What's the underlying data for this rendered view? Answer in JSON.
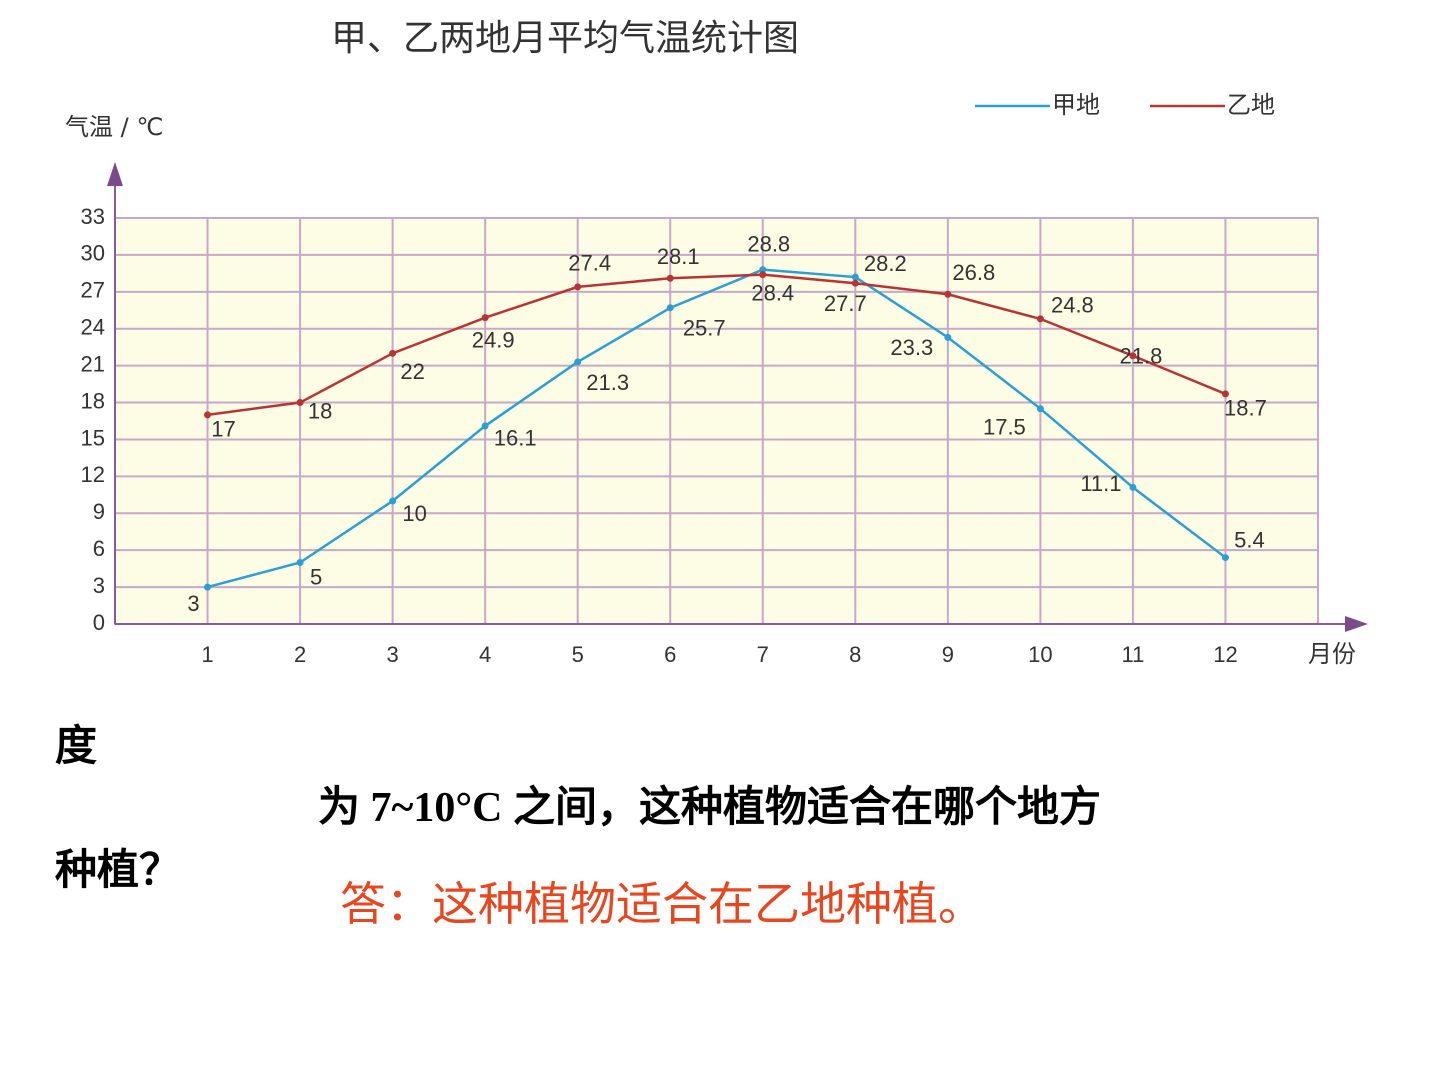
{
  "chart_data": {
    "type": "line",
    "title": "甲、乙两地月平均气温统计图",
    "y_label": "气温 / ℃",
    "x_label": "月份",
    "x": [
      1,
      2,
      3,
      4,
      5,
      6,
      7,
      8,
      9,
      10,
      11,
      12
    ],
    "xlim": [
      0,
      13
    ],
    "xticks": [
      1,
      2,
      3,
      4,
      5,
      6,
      7,
      8,
      9,
      10,
      11,
      12
    ],
    "ylim": [
      0,
      33
    ],
    "yticks": [
      0,
      3,
      6,
      9,
      12,
      15,
      18,
      21,
      24,
      27,
      30,
      33
    ],
    "grid": true,
    "legend": "upper right",
    "series": [
      {
        "name": "甲地",
        "color": "#2a9fd6",
        "values": [
          3,
          5,
          10,
          16.1,
          21.3,
          25.7,
          28.8,
          28.2,
          23.3,
          17.5,
          11.1,
          5.4
        ]
      },
      {
        "name": "乙地",
        "color": "#b83434",
        "values": [
          17,
          18,
          22,
          24.9,
          27.4,
          28.1,
          28.4,
          27.7,
          26.8,
          24.8,
          21.8,
          18.7
        ]
      }
    ]
  },
  "question": [
    "度",
    "为 7~10°C 之间，这种植物适合在哪个地方",
    "种植？"
  ],
  "answer": "答：这种植物适合在乙地种植。"
}
